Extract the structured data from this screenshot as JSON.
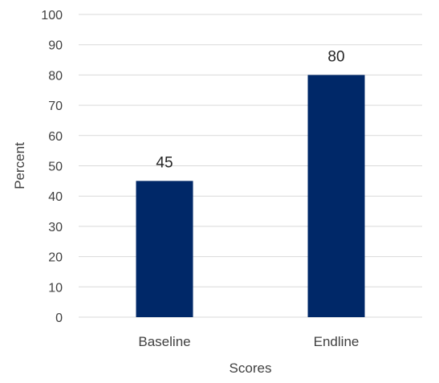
{
  "chart_data": {
    "type": "bar",
    "categories": [
      "Baseline",
      "Endline"
    ],
    "values": [
      45,
      80
    ],
    "data_labels": [
      "45",
      "80"
    ],
    "title": "",
    "xlabel": "Scores",
    "ylabel": "Percent",
    "ylim": [
      0,
      100
    ],
    "yticks": [
      0,
      10,
      20,
      30,
      40,
      50,
      60,
      70,
      80,
      90,
      100
    ],
    "ytick_labels": [
      "0",
      "10",
      "20",
      "30",
      "40",
      "50",
      "60",
      "70",
      "80",
      "90",
      "100"
    ],
    "grid": true,
    "legend": "none",
    "bar_color": "#002868",
    "grid_color": "#d9d9d9"
  }
}
